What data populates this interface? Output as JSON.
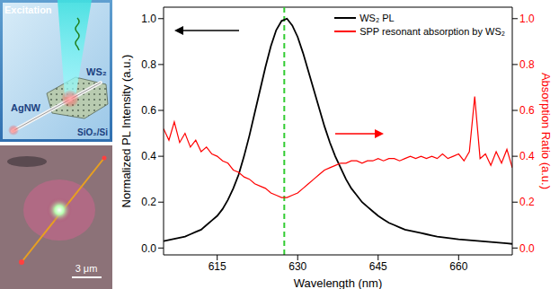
{
  "chart_data": {
    "type": "line",
    "xlabel": "Wavelength (nm)",
    "ylabel": "Normalized PL Intensity (a.u.)",
    "y2label": "Absorption Ratio (a.u.)",
    "legend": "upper right",
    "x": [
      605,
      606,
      607,
      608,
      609,
      610,
      611,
      612,
      613,
      614,
      615,
      616,
      617,
      618,
      619,
      620,
      621,
      622,
      623,
      624,
      625,
      626,
      627,
      628,
      629,
      630,
      631,
      632,
      633,
      634,
      635,
      636,
      637,
      638,
      639,
      640,
      641,
      642,
      643,
      644,
      645,
      646,
      647,
      648,
      649,
      650,
      651,
      652,
      653,
      654,
      655,
      656,
      657,
      658,
      659,
      660,
      661,
      662,
      663,
      664,
      665,
      666,
      667,
      668,
      669,
      670
    ],
    "series": [
      {
        "name": "WS₂ PL",
        "color": "#000000",
        "line_style": "solid",
        "values": [
          0.03,
          0.035,
          0.04,
          0.045,
          0.05,
          0.06,
          0.07,
          0.08,
          0.1,
          0.12,
          0.14,
          0.17,
          0.21,
          0.26,
          0.32,
          0.4,
          0.49,
          0.59,
          0.69,
          0.79,
          0.88,
          0.95,
          0.99,
          1.0,
          0.97,
          0.92,
          0.85,
          0.77,
          0.69,
          0.61,
          0.53,
          0.46,
          0.4,
          0.35,
          0.3,
          0.26,
          0.23,
          0.2,
          0.18,
          0.16,
          0.14,
          0.125,
          0.11,
          0.1,
          0.09,
          0.08,
          0.075,
          0.07,
          0.065,
          0.06,
          0.055,
          0.05,
          0.047,
          0.044,
          0.041,
          0.038,
          0.036,
          0.034,
          0.032,
          0.03,
          0.028,
          0.026,
          0.024,
          0.022,
          0.02,
          0.018
        ]
      },
      {
        "name": "SPP resonant absorption by WS₂",
        "color": "#ff0000",
        "line_style": "solid",
        "axis": "y2",
        "values": [
          0.52,
          0.47,
          0.55,
          0.46,
          0.5,
          0.44,
          0.47,
          0.42,
          0.44,
          0.41,
          0.4,
          0.38,
          0.37,
          0.34,
          0.33,
          0.31,
          0.3,
          0.28,
          0.27,
          0.26,
          0.24,
          0.23,
          0.22,
          0.22,
          0.23,
          0.24,
          0.26,
          0.28,
          0.3,
          0.32,
          0.34,
          0.35,
          0.36,
          0.37,
          0.37,
          0.38,
          0.38,
          0.37,
          0.38,
          0.38,
          0.39,
          0.38,
          0.39,
          0.39,
          0.38,
          0.39,
          0.4,
          0.39,
          0.4,
          0.39,
          0.4,
          0.39,
          0.41,
          0.39,
          0.4,
          0.41,
          0.38,
          0.42,
          0.66,
          0.39,
          0.41,
          0.36,
          0.42,
          0.37,
          0.43,
          0.35
        ]
      }
    ],
    "xlim": [
      605,
      670
    ],
    "xticks": [
      615,
      630,
      645,
      660
    ],
    "ylim": [
      -0.03,
      1.05
    ],
    "yticks": [
      {
        "value": 0,
        "label": "0.0"
      },
      {
        "value": 0.2,
        "label": "0.2"
      },
      {
        "value": 0.4,
        "label": "0.4"
      },
      {
        "value": 0.6,
        "label": "0.6"
      },
      {
        "value": 0.8,
        "label": "0.8"
      },
      {
        "value": 1,
        "label": "1.0"
      }
    ],
    "y2lim": [
      -0.03,
      1.05
    ],
    "y2ticks": [
      {
        "value": 0,
        "label": "0.0"
      },
      {
        "value": 0.2,
        "label": "0.2"
      },
      {
        "value": 0.4,
        "label": "0.4"
      },
      {
        "value": 0.6,
        "label": "0.6"
      },
      {
        "value": 0.8,
        "label": "0.8"
      },
      {
        "value": 1,
        "label": "1.0"
      }
    ],
    "reference_line": {
      "x": 627.5,
      "color": "#33cc33",
      "line_style": "dashed"
    }
  },
  "schematic": {
    "excitation": "Excitation",
    "nanowire": "AgNW",
    "flake": "WS₂",
    "substrate": "SiO₂/Si"
  },
  "micrograph": {
    "scale_bar": "3 μm"
  }
}
